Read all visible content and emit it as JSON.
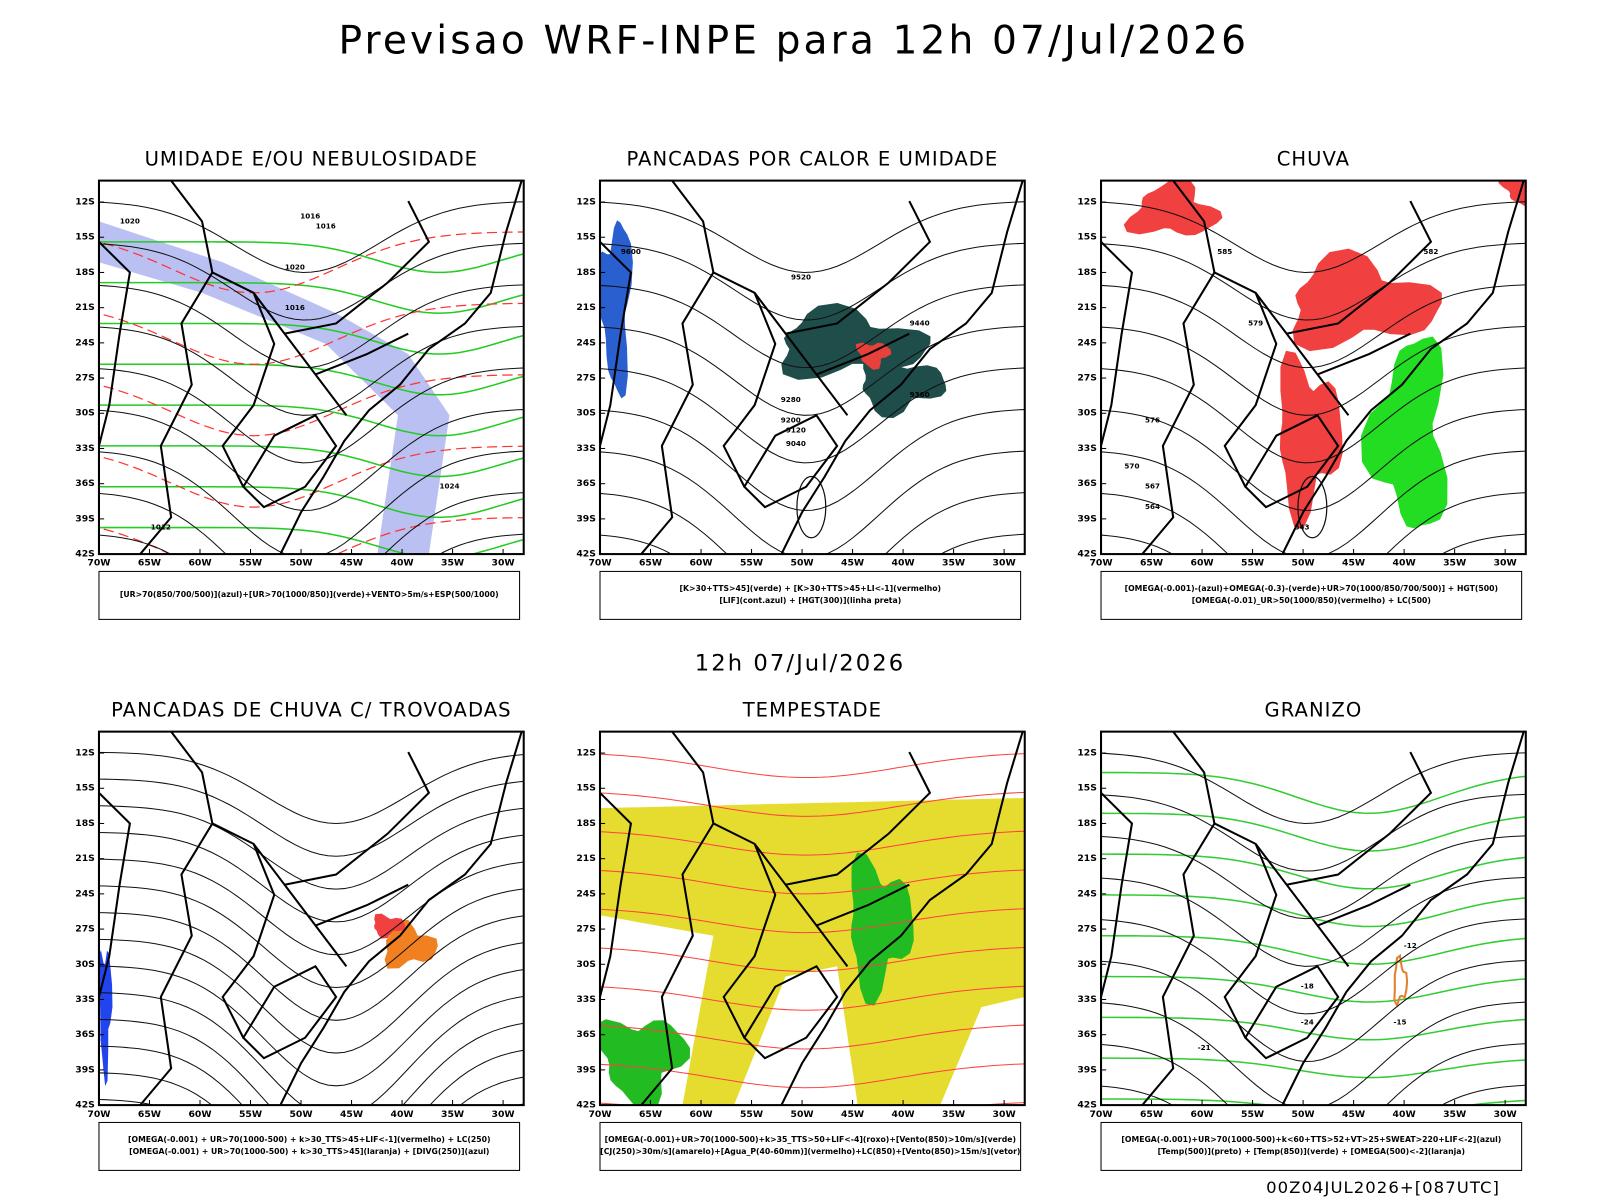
{
  "title": "Previsao WRF-INPE  para 12h 07/Jul/2026",
  "subtitle": "12h 07/Jul/2026",
  "footer": "00Z04JUL2026+[087UTC]",
  "lat_labels": [
    "12S",
    "15S",
    "18S",
    "21S",
    "24S",
    "27S",
    "30S",
    "33S",
    "36S",
    "39S",
    "42S"
  ],
  "lon_labels": [
    "70W",
    "65W",
    "60W",
    "55W",
    "50W",
    "45W",
    "40W",
    "35W",
    "30W"
  ],
  "panels": [
    {
      "title": "UMIDADE E/OU NEBULOSIDADE",
      "legend": [
        "[UR>70(850/700/500)](azul)+[UR>70(1000/850)](verde)+VENTO>5m/s+ESP(500/1000)"
      ],
      "contour_labels": [
        "1020",
        "1016",
        "1016",
        "1020",
        "1016",
        "1012",
        "1024"
      ]
    },
    {
      "title": "PANCADAS POR CALOR E UMIDADE",
      "legend": [
        "[K>30+TTS>45](verde) + [K>30+TTS>45+LI<-1](vermelho)",
        "[LIF](cont.azul) + [HGT(300)](linha preta)"
      ],
      "contour_labels": [
        "9600",
        "9520",
        "9440",
        "9360",
        "9280",
        "9200",
        "9120",
        "9040"
      ]
    },
    {
      "title": "CHUVA",
      "legend": [
        "[OMEGA(-0.001)-(azul)+OMEGA(-0.3)-(verde)+UR>70(1000/850/700/500)] + HGT(500)",
        "[OMEGA(-0.01)_UR>50(1000/850)(vermelho) + LC(500)"
      ],
      "contour_labels": [
        "585",
        "582",
        "579",
        "576",
        "570",
        "567",
        "564",
        "543"
      ]
    },
    {
      "title": "PANCADAS DE CHUVA C/ TROVOADAS",
      "legend": [
        "[OMEGA(-0.001) + UR>70(1000-500) + k>30_TTS>45+LIF<-1](vermelho) + LC(250)",
        "[OMEGA(-0.001) + UR>70(1000-500) + k>30_TTS>45](laranja) + [DIVG(250)](azul)"
      ],
      "contour_labels": []
    },
    {
      "title": "TEMPESTADE",
      "legend": [
        "[OMEGA(-0.001)+UR>70(1000-500)+k>35_TTS>50+LIF<-4](roxo)+[Vento(850)>10m/s](verde)",
        "[CJ(250)>30m/s](amarelo)+[Agua_P(40-60mm)](vermelho)+LC(850)+[Vento(850)>15m/s](vetor)"
      ],
      "contour_labels": []
    },
    {
      "title": "GRANIZO",
      "legend": [
        "[OMEGA(-0.001)+UR>70(1000-500)+k<60+TTS>52+VT>25+SWEAT>220+LIF<-2](azul)",
        "[Temp(500)](preto) + [Temp(850)](verde) + [OMEGA(500)<-2](laranja)"
      ],
      "contour_labels": [
        "-12",
        "-15",
        "-18",
        "-21",
        "-24"
      ]
    }
  ]
}
